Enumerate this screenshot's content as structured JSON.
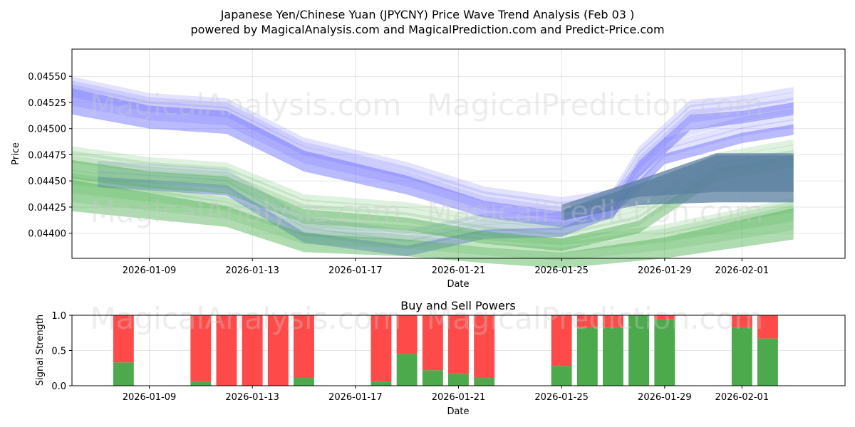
{
  "title": "Japanese Yen/Chinese Yuan (JPYCNY) Price Wave Trend Analysis (Feb 03 )",
  "subtitle": "powered by MagicalAnalysis.com and MagicalPrediction.com and Predict-Price.com",
  "watermark_left": "MagicalAnalysis.com",
  "watermark_right": "MagicalPrediction.com",
  "colors": {
    "blue": "#6666ff",
    "green": "#4caf50",
    "buy": "#4caa4c",
    "sell": "#ff4a4a"
  },
  "chart_data": [
    {
      "type": "area",
      "title": "",
      "xlabel": "Date",
      "ylabel": "Price",
      "x_range": [
        "2026-01-06",
        "2026-02-05"
      ],
      "ylim": [
        0.04376,
        0.04576
      ],
      "grid": true,
      "x_ticks": [
        "2026-01-09",
        "2026-01-13",
        "2026-01-17",
        "2026-01-21",
        "2026-01-25",
        "2026-01-29",
        "2026-02-01"
      ],
      "y_ticks": [
        "0.04400",
        "0.04425",
        "0.04450",
        "0.04475",
        "0.04500",
        "0.04525",
        "0.04550"
      ],
      "series": [
        {
          "name": "blue wave upper",
          "color": "blue",
          "dates": [
            "2026-01-06",
            "2026-01-09",
            "2026-01-12",
            "2026-01-15",
            "2026-01-19",
            "2026-01-22",
            "2026-01-25",
            "2026-01-27",
            "2026-01-28",
            "2026-01-30",
            "2026-02-01",
            "2026-02-03"
          ],
          "center": [
            0.04535,
            0.0452,
            0.04515,
            0.04478,
            0.04455,
            0.04432,
            0.04422,
            0.0443,
            0.0447,
            0.04515,
            0.0452,
            0.04528
          ],
          "width": [
            0.00025,
            0.00022,
            0.00022,
            0.0002,
            0.00018,
            0.00016,
            0.00015,
            0.00014,
            0.00016,
            0.00015,
            0.00012,
            0.00012
          ]
        },
        {
          "name": "blue wave mid",
          "color": "blue",
          "dates": [
            "2026-01-07",
            "2026-01-09",
            "2026-01-12",
            "2026-01-15",
            "2026-01-19",
            "2026-01-22",
            "2026-01-25",
            "2026-01-27",
            "2026-01-29",
            "2026-02-01",
            "2026-02-03"
          ],
          "center": [
            0.04458,
            0.04455,
            0.0445,
            0.04405,
            0.04392,
            0.04408,
            0.0441,
            0.0443,
            0.0448,
            0.045,
            0.04508
          ],
          "width": [
            0.0001,
            0.0001,
            0.0001,
            0.0001,
            0.0001,
            9e-05,
            9e-05,
            0.0001,
            0.0001,
            0.0001,
            0.0001
          ]
        },
        {
          "name": "green wave upper",
          "color": "green",
          "dates": [
            "2026-01-06",
            "2026-01-09",
            "2026-01-12",
            "2026-01-15",
            "2026-01-19",
            "2026-01-22",
            "2026-01-25",
            "2026-01-28",
            "2026-01-31",
            "2026-02-03"
          ],
          "center": [
            0.0447,
            0.0446,
            0.04455,
            0.04425,
            0.04418,
            0.04405,
            0.04398,
            0.04415,
            0.04465,
            0.04478
          ],
          "width": [
            0.00018,
            0.00016,
            0.00016,
            0.00014,
            0.00012,
            0.00012,
            0.00012,
            0.00012,
            0.00012,
            0.00012
          ]
        },
        {
          "name": "green wave lower",
          "color": "green",
          "dates": [
            "2026-01-06",
            "2026-01-09",
            "2026-01-12",
            "2026-01-15",
            "2026-01-19",
            "2026-01-22",
            "2026-01-25",
            "2026-01-29",
            "2026-02-03"
          ],
          "center": [
            0.04445,
            0.04435,
            0.04425,
            0.044,
            0.04395,
            0.04388,
            0.04383,
            0.04395,
            0.04418
          ],
          "width": [
            0.0003,
            0.00025,
            0.0002,
            0.00018,
            0.00016,
            0.00015,
            0.00015,
            0.0002,
            0.0003
          ]
        },
        {
          "name": "steel wave",
          "color": "steel",
          "dates": [
            "2026-01-25",
            "2026-01-28",
            "2026-01-31",
            "2026-02-03"
          ],
          "center": [
            0.0442,
            0.0444,
            0.04455,
            0.04455
          ],
          "width": [
            0.0001,
            0.0002,
            0.00045,
            0.00045
          ]
        }
      ]
    },
    {
      "type": "bar",
      "title": "Buy and Sell Powers",
      "xlabel": "Date",
      "ylabel": "Signal Strength",
      "ylim": [
        0,
        1.0
      ],
      "y_ticks": [
        "0.0",
        "0.5",
        "1.0"
      ],
      "x_ticks": [
        "2026-01-09",
        "2026-01-13",
        "2026-01-17",
        "2026-01-21",
        "2026-01-25",
        "2026-01-29",
        "2026-02-01"
      ],
      "x_range": [
        "2026-01-06",
        "2026-02-05"
      ],
      "dates": [
        "2026-01-08",
        "2026-01-11",
        "2026-01-12",
        "2026-01-13",
        "2026-01-14",
        "2026-01-15",
        "2026-01-18",
        "2026-01-19",
        "2026-01-20",
        "2026-01-21",
        "2026-01-22",
        "2026-01-25",
        "2026-01-26",
        "2026-01-27",
        "2026-01-28",
        "2026-01-29",
        "2026-02-01",
        "2026-02-02"
      ],
      "series": [
        {
          "name": "Buy",
          "color": "buy",
          "values": [
            0.33,
            0.06,
            0.0,
            0.0,
            0.0,
            0.11,
            0.06,
            0.45,
            0.22,
            0.17,
            0.11,
            0.28,
            0.83,
            0.83,
            1.0,
            0.94,
            0.83,
            0.67
          ]
        },
        {
          "name": "Sell",
          "color": "sell",
          "values": [
            0.67,
            0.94,
            1.0,
            1.0,
            1.0,
            0.89,
            0.94,
            0.55,
            0.78,
            0.83,
            0.89,
            0.72,
            0.17,
            0.17,
            0.0,
            0.06,
            0.17,
            0.33
          ]
        }
      ]
    }
  ]
}
